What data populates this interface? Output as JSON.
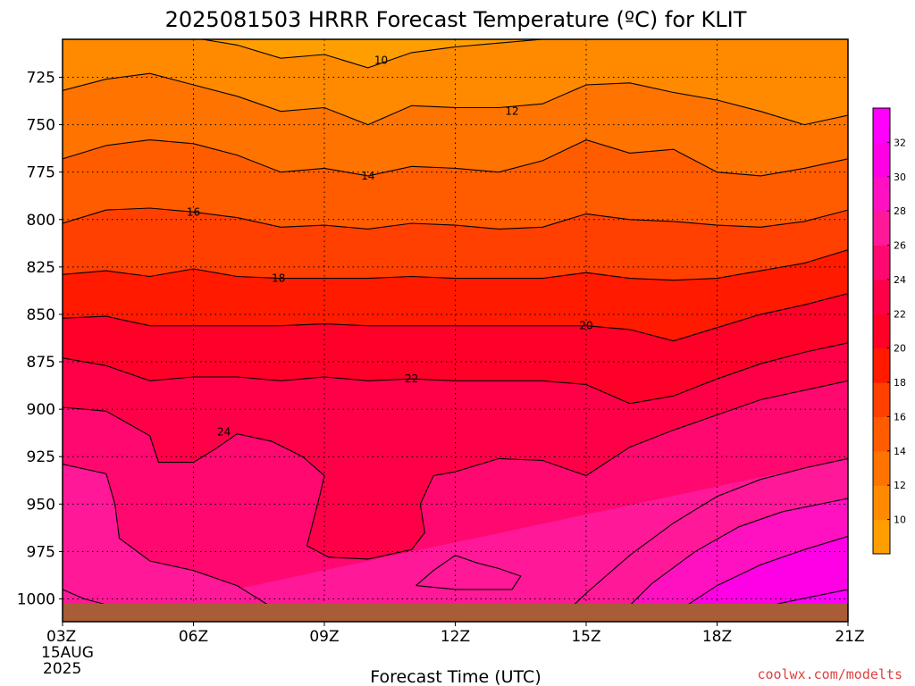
{
  "title": "2025081503 HRRR Forecast Temperature (ºC) for KLIT",
  "credit": "coolwx.com/modelts",
  "chart_data": {
    "type": "heatmap",
    "title": "2025081503 HRRR Forecast Temperature (ºC) for KLIT",
    "xlabel": "Forecast Time (UTC)",
    "ylabel": "",
    "x_ticks": [
      {
        "hour": 3,
        "label": "03Z",
        "date": "15AUG",
        "year": "2025"
      },
      {
        "hour": 6,
        "label": "06Z"
      },
      {
        "hour": 9,
        "label": "09Z"
      },
      {
        "hour": 12,
        "label": "12Z"
      },
      {
        "hour": 15,
        "label": "15Z"
      },
      {
        "hour": 18,
        "label": "18Z"
      },
      {
        "hour": 21,
        "label": "21Z"
      }
    ],
    "xlim": [
      3,
      21
    ],
    "y_ticks": [
      725,
      750,
      775,
      800,
      825,
      850,
      875,
      900,
      925,
      950,
      975,
      1000
    ],
    "ylim": [
      705,
      1012
    ],
    "y_units": "hPa",
    "grid": "dotted",
    "contour_interval": 2,
    "colorbar": {
      "ticks": [
        10,
        12,
        14,
        16,
        18,
        20,
        22,
        24,
        26,
        28,
        30,
        32
      ],
      "levels": [
        {
          "min": 8,
          "max": 10,
          "color": "#ff9e00"
        },
        {
          "min": 10,
          "max": 12,
          "color": "#ff8a00"
        },
        {
          "min": 12,
          "max": 14,
          "color": "#ff7300"
        },
        {
          "min": 14,
          "max": 16,
          "color": "#ff5c00"
        },
        {
          "min": 16,
          "max": 18,
          "color": "#ff4000"
        },
        {
          "min": 18,
          "max": 20,
          "color": "#ff1a00"
        },
        {
          "min": 20,
          "max": 22,
          "color": "#ff0028"
        },
        {
          "min": 22,
          "max": 24,
          "color": "#ff0048"
        },
        {
          "min": 24,
          "max": 26,
          "color": "#ff0870"
        },
        {
          "min": 26,
          "max": 28,
          "color": "#ff1898"
        },
        {
          "min": 28,
          "max": 30,
          "color": "#ff10c0"
        },
        {
          "min": 30,
          "max": 32,
          "color": "#ff00e6"
        },
        {
          "min": 32,
          "max": 34,
          "color": "#ff00ff"
        }
      ]
    },
    "ground_color": "#a85c38",
    "contours": [
      {
        "value": 10,
        "label": "10",
        "label_at": {
          "hour": 10.3,
          "p": 716
        },
        "points": [
          [
            6.2,
            705
          ],
          [
            7,
            708
          ],
          [
            8,
            715
          ],
          [
            9,
            713
          ],
          [
            10,
            720
          ],
          [
            11,
            712
          ],
          [
            12,
            709
          ],
          [
            13,
            707
          ],
          [
            14,
            705
          ]
        ]
      },
      {
        "value": 12,
        "label": "12",
        "label_at": {
          "hour": 13.3,
          "p": 743
        },
        "points": [
          [
            3,
            732
          ],
          [
            4,
            726
          ],
          [
            5,
            723
          ],
          [
            6,
            729
          ],
          [
            7,
            735
          ],
          [
            8,
            743
          ],
          [
            9,
            741
          ],
          [
            10,
            750
          ],
          [
            11,
            740
          ],
          [
            12,
            741
          ],
          [
            13,
            741
          ],
          [
            14,
            739
          ],
          [
            15,
            729
          ],
          [
            16,
            728
          ],
          [
            17,
            733
          ],
          [
            18,
            737
          ],
          [
            19,
            743
          ],
          [
            20,
            750
          ],
          [
            21,
            745
          ]
        ]
      },
      {
        "value": 14,
        "label": "14",
        "label_at": {
          "hour": 10,
          "p": 777
        },
        "points": [
          [
            3,
            768
          ],
          [
            4,
            761
          ],
          [
            5,
            758
          ],
          [
            6,
            760
          ],
          [
            7,
            766
          ],
          [
            8,
            775
          ],
          [
            9,
            773
          ],
          [
            10,
            777
          ],
          [
            11,
            772
          ],
          [
            12,
            773
          ],
          [
            13,
            775
          ],
          [
            14,
            769
          ],
          [
            15,
            758
          ],
          [
            16,
            765
          ],
          [
            17,
            763
          ],
          [
            18,
            775
          ],
          [
            19,
            777
          ],
          [
            20,
            773
          ],
          [
            21,
            768
          ]
        ]
      },
      {
        "value": 16,
        "label": "16",
        "label_at": {
          "hour": 6,
          "p": 796
        },
        "points": [
          [
            3,
            802
          ],
          [
            4,
            795
          ],
          [
            5,
            794
          ],
          [
            6,
            796
          ],
          [
            7,
            799
          ],
          [
            8,
            804
          ],
          [
            9,
            803
          ],
          [
            10,
            805
          ],
          [
            11,
            802
          ],
          [
            12,
            803
          ],
          [
            13,
            805
          ],
          [
            14,
            804
          ],
          [
            15,
            797
          ],
          [
            16,
            800
          ],
          [
            17,
            801
          ],
          [
            18,
            803
          ],
          [
            19,
            804
          ],
          [
            20,
            801
          ],
          [
            21,
            795
          ]
        ]
      },
      {
        "value": 18,
        "label": "18",
        "label_at": {
          "hour": 7.95,
          "p": 831
        },
        "points": [
          [
            3,
            829
          ],
          [
            4,
            827
          ],
          [
            5,
            830
          ],
          [
            6,
            826
          ],
          [
            7,
            830
          ],
          [
            8,
            831
          ],
          [
            9,
            831
          ],
          [
            10,
            831
          ],
          [
            11,
            830
          ],
          [
            12,
            831
          ],
          [
            13,
            831
          ],
          [
            14,
            831
          ],
          [
            15,
            828
          ],
          [
            16,
            831
          ],
          [
            17,
            832
          ],
          [
            18,
            831
          ],
          [
            19,
            827
          ],
          [
            20,
            823
          ],
          [
            21,
            816
          ]
        ]
      },
      {
        "value": 20,
        "label": "20",
        "label_at": {
          "hour": 15,
          "p": 856
        },
        "points": [
          [
            3,
            852
          ],
          [
            4,
            851
          ],
          [
            5,
            856
          ],
          [
            6,
            856
          ],
          [
            7,
            856
          ],
          [
            8,
            856
          ],
          [
            9,
            855
          ],
          [
            10,
            856
          ],
          [
            11,
            856
          ],
          [
            12,
            856
          ],
          [
            13,
            856
          ],
          [
            14,
            856
          ],
          [
            15,
            856
          ],
          [
            16,
            858
          ],
          [
            17,
            864
          ],
          [
            18,
            857
          ],
          [
            19,
            850
          ],
          [
            20,
            845
          ],
          [
            21,
            839
          ]
        ]
      },
      {
        "value": 22,
        "label": "22",
        "label_at": {
          "hour": 11,
          "p": 884
        },
        "points": [
          [
            3,
            873
          ],
          [
            4,
            877
          ],
          [
            5,
            885
          ],
          [
            6,
            883
          ],
          [
            7,
            883
          ],
          [
            8,
            885
          ],
          [
            9,
            883
          ],
          [
            10,
            885
          ],
          [
            11,
            884
          ],
          [
            12,
            885
          ],
          [
            13,
            885
          ],
          [
            14,
            885
          ],
          [
            15,
            887
          ],
          [
            16,
            897
          ],
          [
            17,
            893
          ],
          [
            18,
            884
          ],
          [
            19,
            876
          ],
          [
            20,
            870
          ],
          [
            21,
            865
          ]
        ]
      },
      {
        "value": 24,
        "label": "24",
        "label_at": {
          "hour": 6.7,
          "p": 912
        },
        "points": [
          [
            3,
            899
          ],
          [
            4,
            901
          ],
          [
            5,
            914
          ],
          [
            5.2,
            928
          ],
          [
            6,
            928
          ],
          [
            6.5,
            921
          ],
          [
            7,
            913
          ],
          [
            7.8,
            917
          ],
          [
            8.5,
            925
          ],
          [
            9,
            935
          ],
          [
            8.9,
            945
          ],
          [
            8.6,
            972
          ],
          [
            9.1,
            978
          ],
          [
            10,
            979
          ],
          [
            11,
            974
          ],
          [
            11.3,
            965
          ],
          [
            11.2,
            950
          ],
          [
            11.5,
            935
          ],
          [
            12,
            933
          ],
          [
            13,
            926
          ],
          [
            14,
            927
          ],
          [
            15,
            935
          ],
          [
            16,
            920
          ],
          [
            17,
            911
          ],
          [
            18,
            903
          ],
          [
            19,
            895
          ],
          [
            20,
            890
          ],
          [
            21,
            885
          ]
        ]
      },
      {
        "value": 24,
        "label": "",
        "points": [
          [
            11.1,
            993
          ],
          [
            11.5,
            985
          ],
          [
            12,
            977
          ],
          [
            12.5,
            981
          ],
          [
            13,
            984
          ],
          [
            13.5,
            988
          ],
          [
            13.3,
            995
          ],
          [
            12,
            995
          ],
          [
            11.1,
            993
          ]
        ]
      },
      {
        "value": 26,
        "label": "",
        "points": [
          [
            3,
            929
          ],
          [
            4,
            934
          ],
          [
            4.2,
            950
          ],
          [
            4.3,
            968
          ],
          [
            5,
            980
          ],
          [
            6,
            985
          ],
          [
            7,
            993
          ],
          [
            7.7,
            1003
          ],
          [
            8,
            1006
          ]
        ]
      },
      {
        "value": 26,
        "label": "",
        "points": [
          [
            14.5,
            1008
          ],
          [
            15,
            997
          ],
          [
            16,
            977
          ],
          [
            17,
            960
          ],
          [
            18,
            946
          ],
          [
            19,
            937
          ],
          [
            20,
            931
          ],
          [
            21,
            926
          ]
        ]
      },
      {
        "value": 28,
        "label": "",
        "points": [
          [
            15.8,
            1008
          ],
          [
            16.5,
            992
          ],
          [
            17.5,
            975
          ],
          [
            18.5,
            962
          ],
          [
            19.5,
            954
          ],
          [
            21,
            947
          ]
        ]
      },
      {
        "value": 30,
        "label": "",
        "points": [
          [
            17,
            1008
          ],
          [
            18,
            993
          ],
          [
            19,
            982
          ],
          [
            20,
            974
          ],
          [
            21,
            967
          ]
        ]
      },
      {
        "value": 32,
        "label": "",
        "points": [
          [
            18.5,
            1008
          ],
          [
            19.5,
            1002
          ],
          [
            21,
            995
          ]
        ]
      },
      {
        "value": 26,
        "label": "",
        "points": [
          [
            3,
            995
          ],
          [
            3.5,
            1000
          ],
          [
            4,
            1003
          ]
        ]
      }
    ]
  }
}
